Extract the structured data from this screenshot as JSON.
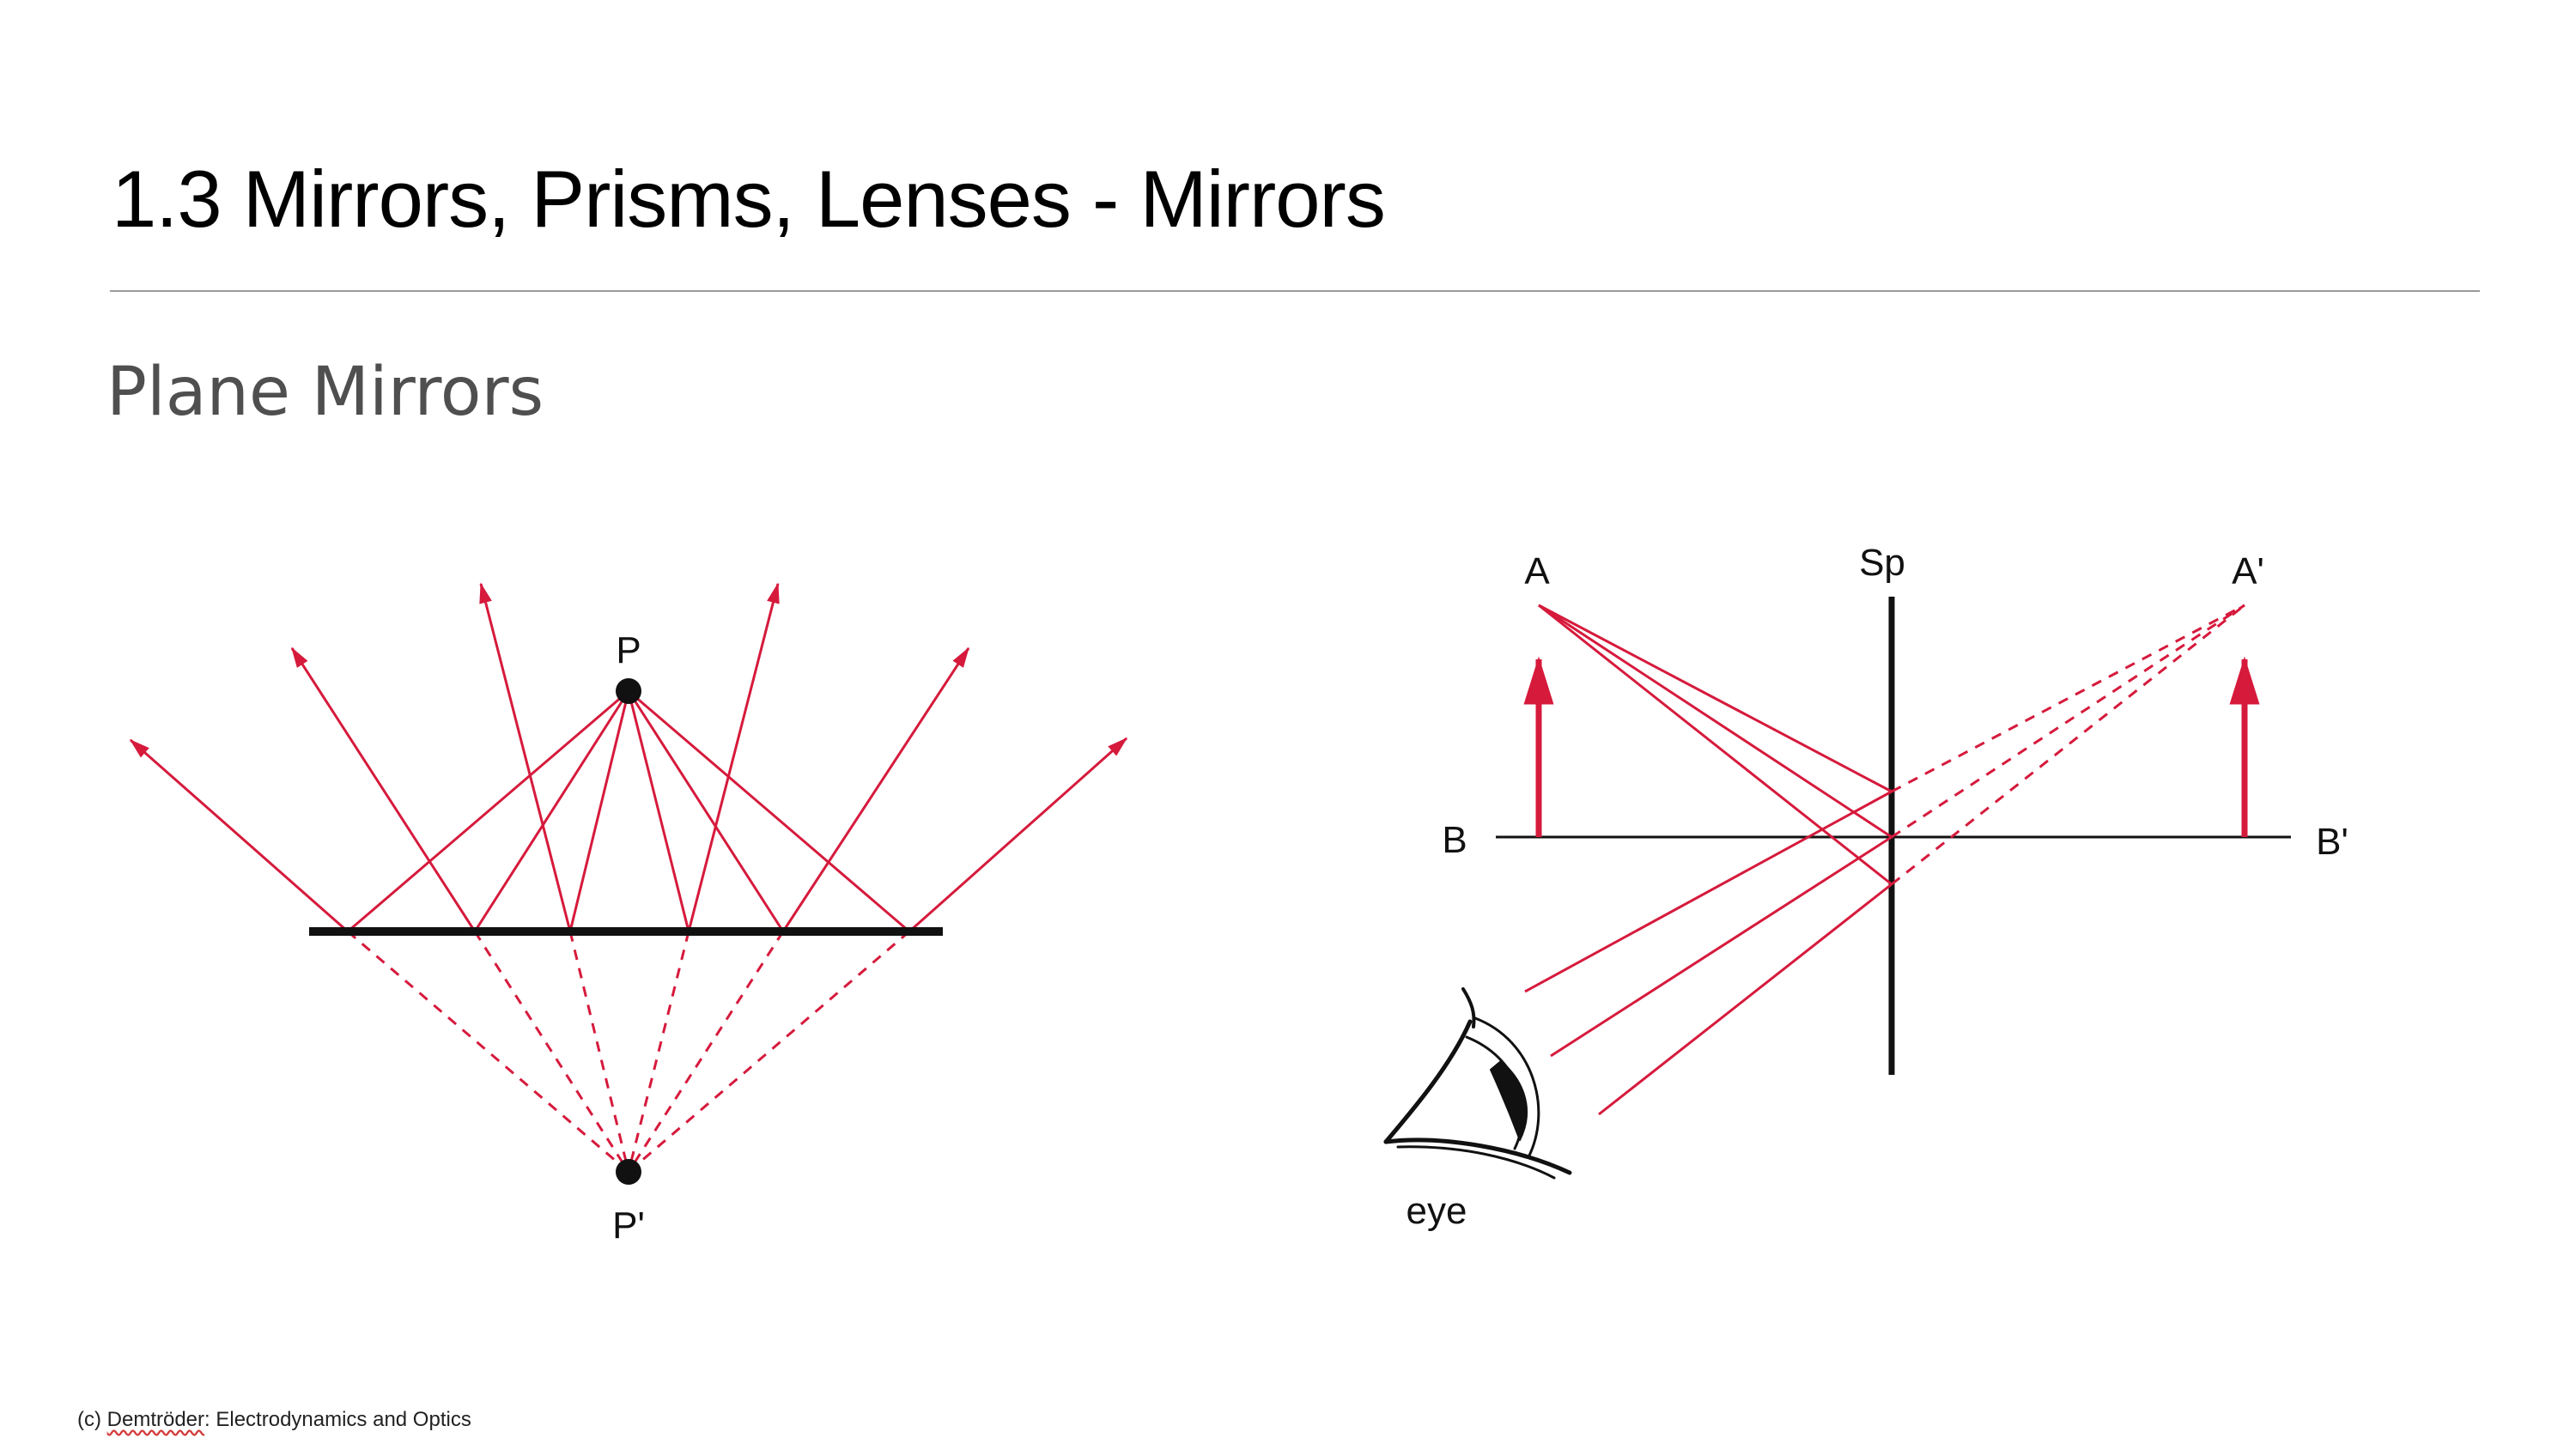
{
  "slide": {
    "title": "1.3 Mirrors, Prisms, Lenses - Mirrors",
    "subtitle": "Plane Mirrors"
  },
  "colors": {
    "ray": "#d61a3c",
    "mirror": "#111111",
    "rule": "#9a9a9a",
    "subtitle": "#4f4f4f"
  },
  "left_diagram": {
    "label_object": "P",
    "label_image": "P'"
  },
  "right_diagram": {
    "label_a": "A",
    "label_b": "B",
    "label_a_image": "A'",
    "label_b_image": "B'",
    "label_mirror": "Sp",
    "label_eye": "eye",
    "icons": [
      "eye-icon"
    ]
  },
  "credit": {
    "prefix": "(c) ",
    "author": "Demtröder",
    "suffix": ": Electrodynamics and Optics"
  }
}
